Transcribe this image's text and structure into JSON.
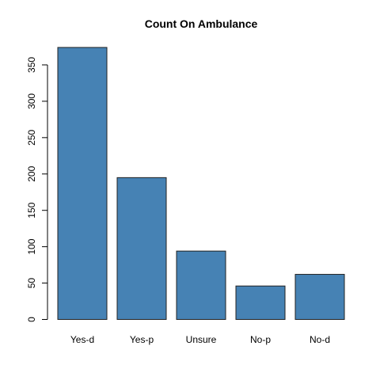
{
  "chart_data": {
    "type": "bar",
    "title": "Count On Ambulance",
    "xlabel": "",
    "ylabel": "",
    "categories": [
      "Yes-d",
      "Yes-p",
      "Unsure",
      "No-p",
      "No-d"
    ],
    "values": [
      374,
      195,
      94,
      46,
      62
    ],
    "ylim": [
      0,
      375
    ],
    "yticks": [
      0,
      50,
      100,
      150,
      200,
      250,
      300,
      350
    ],
    "bar_color": "#4682B4",
    "grid": false,
    "legend": "none"
  }
}
